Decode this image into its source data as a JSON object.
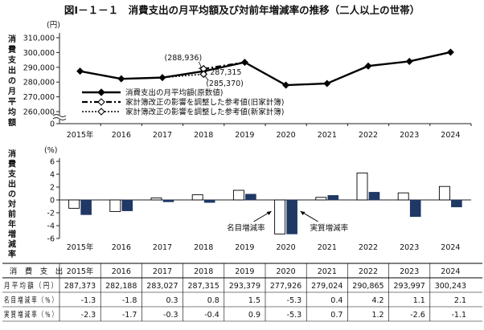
{
  "title": "図Ⅰ－１－１　消費支出の月平均額及び対前年増減率の推移（二人以上の世帯）",
  "chart_data": [
    {
      "type": "line",
      "ylabel": "消費支出の月平均額",
      "unit": "(円)",
      "categories": [
        "2015年",
        "2016",
        "2017",
        "2018",
        "2019",
        "2020",
        "2021",
        "2022",
        "2023",
        "2024"
      ],
      "yticks": [
        "0",
        "260,000",
        "270,000",
        "280,000",
        "290,000",
        "300,000",
        "310,000"
      ],
      "ylim": [
        260000,
        310000
      ],
      "axis_break": true,
      "legend_position": "bottom-left",
      "series": [
        {
          "name": "消費支出の月平均額(原数値)",
          "style": "solid-filled-diamond",
          "values": [
            287373,
            282188,
            283027,
            287315,
            293379,
            277926,
            279024,
            290865,
            293997,
            300243
          ]
        },
        {
          "name": "家計簿改正の影響を調整した参考値(旧家計簿)",
          "style": "dash-dot-open-diamond",
          "x": [
            "2018",
            "2019"
          ],
          "values": [
            288936,
            293379
          ]
        },
        {
          "name": "家計簿改正の影響を調整した参考値(新家計簿)",
          "style": "dotted-open-diamond",
          "x": [
            "2018"
          ],
          "values": [
            285370
          ]
        }
      ],
      "annotations": [
        "(288,936)",
        "287,315",
        "(285,370)"
      ]
    },
    {
      "type": "bar",
      "ylabel": "消費支出の対前年増減率",
      "unit": "(%)",
      "categories": [
        "2015年",
        "2016",
        "2017",
        "2018",
        "2019",
        "2020",
        "2021",
        "2022",
        "2023",
        "2024"
      ],
      "yticks": [
        "-6",
        "-4",
        "-2",
        "0",
        "2",
        "4",
        "6"
      ],
      "ylim": [
        -6,
        6
      ],
      "series": [
        {
          "name": "名目増減率",
          "color": "#ffffff",
          "values": [
            -1.3,
            -1.8,
            0.3,
            0.8,
            1.5,
            -5.3,
            0.4,
            4.2,
            1.1,
            2.1
          ]
        },
        {
          "name": "実質増減率",
          "color": "#1f3864",
          "values": [
            -2.3,
            -1.7,
            -0.3,
            -0.4,
            0.9,
            -5.3,
            0.7,
            1.2,
            -2.6,
            -1.1
          ]
        }
      ],
      "annotations": [
        "名目増減率",
        "実質増減率"
      ]
    },
    {
      "type": "table",
      "header": {
        "label": "消　費　支　出",
        "years": [
          "2015年",
          "2016",
          "2017",
          "2018",
          "2019",
          "2020",
          "2021",
          "2022",
          "2023",
          "2024"
        ]
      },
      "rows": [
        {
          "label": "月 平 均 額 （ 円 ）",
          "values": [
            "287,373",
            "282,188",
            "283,027",
            "287,315",
            "293,379",
            "277,926",
            "279,024",
            "290,865",
            "293,997",
            "300,243"
          ]
        },
        {
          "label": "名 目 増 減 率 （ % ）",
          "values": [
            "-1.3",
            "-1.8",
            "0.3",
            "0.8",
            "1.5",
            "-5.3",
            "0.4",
            "4.2",
            "1.1",
            "2.1"
          ]
        },
        {
          "label": "実 質 増 減 率 （ % ）",
          "values": [
            "-2.3",
            "-1.7",
            "-0.3",
            "-0.4",
            "0.9",
            "-5.3",
            "0.7",
            "1.2",
            "-2.6",
            "-1.1"
          ]
        }
      ]
    }
  ]
}
